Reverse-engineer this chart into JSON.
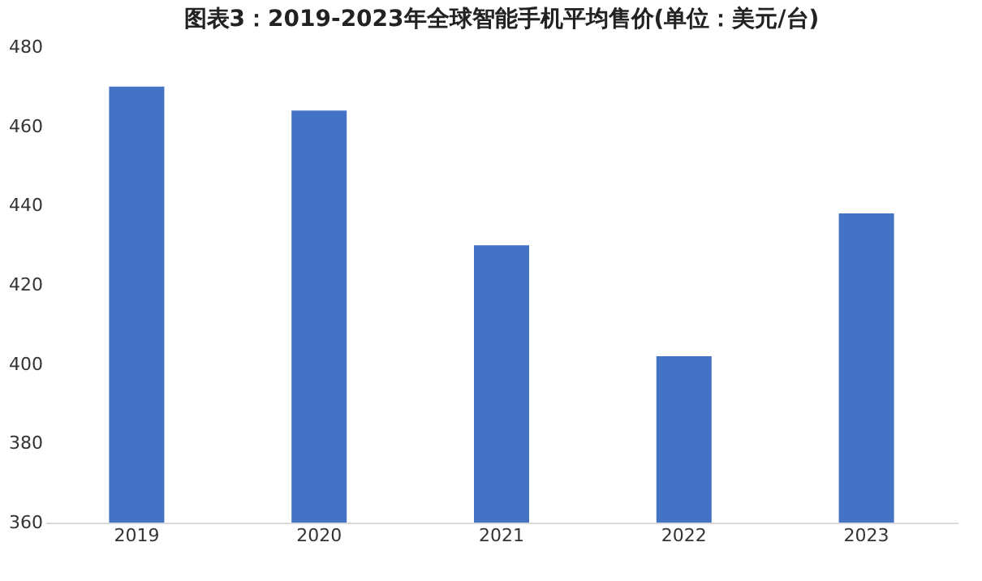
{
  "chart_data": {
    "type": "bar",
    "title": "图表3：2019-2023年全球智能手机平均售价(单位：美元/台)",
    "categories": [
      "2019",
      "2020",
      "2021",
      "2022",
      "2023"
    ],
    "values": [
      470,
      464,
      430,
      402,
      438
    ],
    "color": "#4472c4",
    "ylim": [
      360,
      480
    ],
    "yticks": [
      360,
      380,
      400,
      420,
      440,
      460,
      480
    ],
    "grid": false
  }
}
